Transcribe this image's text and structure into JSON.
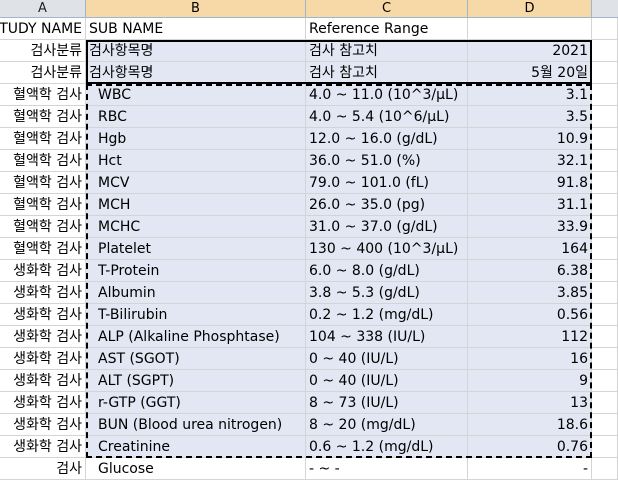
{
  "columns": [
    "A",
    "B",
    "C",
    "D"
  ],
  "rows": [
    {
      "a": "STUDY NAME",
      "b": "SUB NAME",
      "c": "Reference Range",
      "d": ""
    },
    {
      "a": "검사분류",
      "b": "검사항목명",
      "c": "검사 참고치",
      "d": "2021"
    },
    {
      "a": "검사분류",
      "b": "검사항목명",
      "c": "검사 참고치",
      "d": "5월 20일"
    },
    {
      "a": "혈액학 검사",
      "b": "WBC",
      "c": "4.0 ~ 11.0 (10^3/μL)",
      "d": "3.1"
    },
    {
      "a": "혈액학 검사",
      "b": "RBC",
      "c": "4.0 ~ 5.4 (10^6/μL)",
      "d": "3.5"
    },
    {
      "a": "혈액학 검사",
      "b": "Hgb",
      "c": "12.0 ~ 16.0 (g/dL)",
      "d": "10.9"
    },
    {
      "a": "혈액학 검사",
      "b": "Hct",
      "c": "36.0 ~ 51.0 (%)",
      "d": "32.1"
    },
    {
      "a": "혈액학 검사",
      "b": "MCV",
      "c": "79.0 ~ 101.0 (fL)",
      "d": "91.8"
    },
    {
      "a": "혈액학 검사",
      "b": "MCH",
      "c": "26.0 ~ 35.0 (pg)",
      "d": "31.1"
    },
    {
      "a": "혈액학 검사",
      "b": "MCHC",
      "c": "31.0 ~ 37.0 (g/dL)",
      "d": "33.9"
    },
    {
      "a": "혈액학 검사",
      "b": "Platelet",
      "c": "130 ~ 400 (10^3/μL)",
      "d": "164"
    },
    {
      "a": "생화학 검사",
      "b": "T-Protein",
      "c": "6.0 ~ 8.0 (g/dL)",
      "d": "6.38"
    },
    {
      "a": "생화학 검사",
      "b": "Albumin",
      "c": "3.8 ~ 5.3 (g/dL)",
      "d": "3.85"
    },
    {
      "a": "생화학 검사",
      "b": "T-Bilirubin",
      "c": "0.2 ~ 1.2 (mg/dL)",
      "d": "0.56"
    },
    {
      "a": "생화학 검사",
      "b": "ALP (Alkaline Phosphtase)",
      "c": "104 ~ 338 (IU/L)",
      "d": "112"
    },
    {
      "a": "생화학 검사",
      "b": "AST (SGOT)",
      "c": "0 ~ 40 (IU/L)",
      "d": "16"
    },
    {
      "a": "생화학 검사",
      "b": "ALT (SGPT)",
      "c": "0 ~ 40 (IU/L)",
      "d": "9"
    },
    {
      "a": "생화학 검사",
      "b": "r-GTP (GGT)",
      "c": "8 ~ 73 (IU/L)",
      "d": "13"
    },
    {
      "a": "생화학 검사",
      "b": "BUN (Blood urea nitrogen)",
      "c": "8 ~ 20 (mg/dL)",
      "d": "18.6"
    },
    {
      "a": "생화학 검사",
      "b": "Creatinine",
      "c": "0.6 ~ 1.2 (mg/dL)",
      "d": "0.76"
    },
    {
      "a": "검사",
      "b": "Glucose",
      "c": "- ~ -",
      "d": "-"
    }
  ],
  "colors": {
    "header_bg": "#dfe3e8",
    "selected_header": "#f7d9a8",
    "selection_fill": "#e3e6f3",
    "gridline": "#d4d4d4"
  }
}
